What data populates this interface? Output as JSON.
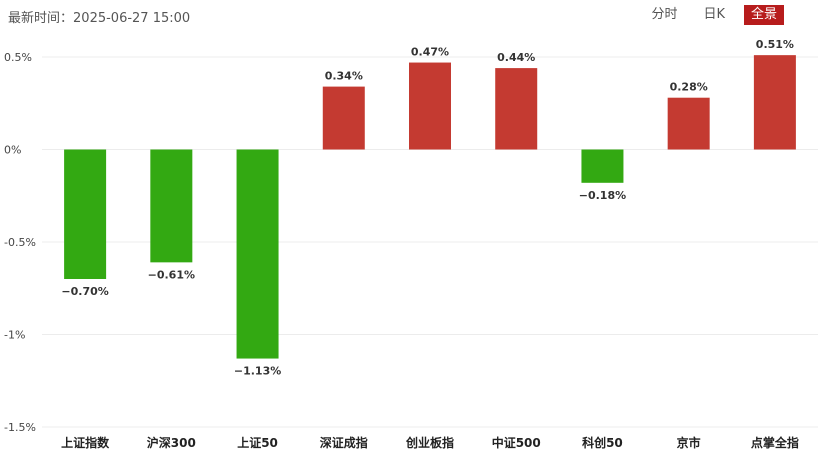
{
  "header": {
    "timestamp_label": "最新时间",
    "timestamp_value": "2025-06-27 15:00",
    "tabs": [
      {
        "label": "分时",
        "active": false
      },
      {
        "label": "日K",
        "active": false
      },
      {
        "label": "全景",
        "active": true
      }
    ]
  },
  "colors": {
    "up": "#c43a31",
    "down": "#33a912",
    "active_tab": "#b71c1c"
  },
  "chart_data": {
    "type": "bar",
    "categories": [
      "上证指数",
      "沪深300",
      "上证50",
      "深证成指",
      "创业板指",
      "中证500",
      "科创50",
      "京市",
      "点掌全指"
    ],
    "values": [
      -0.7,
      -0.61,
      -1.13,
      0.34,
      0.47,
      0.44,
      -0.18,
      0.28,
      0.51
    ],
    "value_labels": [
      "−0.70%",
      "−0.61%",
      "−1.13%",
      "0.34%",
      "0.47%",
      "0.44%",
      "−0.18%",
      "0.28%",
      "0.51%"
    ],
    "y_ticks": [
      0.5,
      0,
      -0.5,
      -1,
      -1.5
    ],
    "y_tick_labels": [
      "0.5%",
      "0%",
      "-0.5%",
      "-1%",
      "-1.5%"
    ],
    "ylim": [
      -1.5,
      0.5
    ],
    "grid": true
  }
}
